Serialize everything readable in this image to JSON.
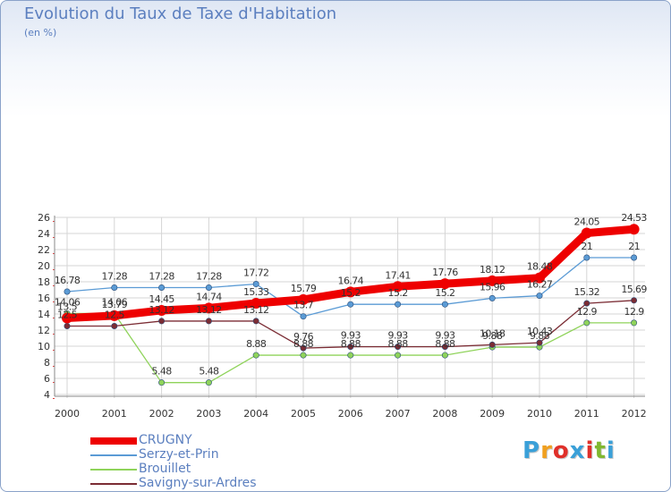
{
  "title": "Evolution du Taux de Taxe d'Habitation",
  "subtitle": "(en %)",
  "logo": {
    "text": "Proxiti",
    "letter_colors": [
      "#3aa0d8",
      "#f0a020",
      "#e0302a",
      "#3aa0d8",
      "#e0302a",
      "#80b830",
      "#3aa0d8"
    ]
  },
  "chart_data": {
    "type": "line",
    "x": [
      "2000",
      "2001",
      "2002",
      "2003",
      "2004",
      "2005",
      "2006",
      "2007",
      "2008",
      "2009",
      "2010",
      "2011",
      "2012"
    ],
    "ylim": [
      4,
      26
    ],
    "yticks": [
      4,
      6,
      8,
      10,
      12,
      14,
      16,
      18,
      20,
      22,
      24,
      26
    ],
    "grid": true,
    "legend_position": "bottom-left",
    "series": [
      {
        "name": "CRUGNY",
        "color": "#ee0000",
        "values": [
          13.5,
          13.79,
          14.45,
          14.74,
          15.33,
          15.79,
          16.74,
          17.41,
          17.76,
          18.12,
          18.48,
          24.05,
          24.53
        ],
        "labels": [
          "13.5",
          "13.79",
          "14.45",
          "14.74",
          "15.33",
          "15.79",
          "16.74",
          "17.41",
          "17.76",
          "18.12",
          "18.48",
          "24.05",
          "24.53"
        ]
      },
      {
        "name": "Serzy-et-Prin",
        "color": "#5b9bd5",
        "values": [
          16.78,
          17.28,
          17.28,
          17.28,
          17.72,
          13.7,
          15.2,
          15.2,
          15.2,
          15.96,
          16.27,
          21,
          21
        ],
        "labels": [
          "16.78",
          "17.28",
          "17.28",
          "17.28",
          "17.72",
          "13.7",
          "15.2",
          "15.2",
          "15.2",
          "15.96",
          "16.27",
          "21",
          "21"
        ]
      },
      {
        "name": "Brouillet",
        "color": "#8fd35a",
        "values": [
          14.06,
          14.06,
          5.48,
          5.48,
          8.88,
          8.88,
          8.88,
          8.88,
          8.88,
          9.88,
          9.88,
          12.9,
          12.9
        ],
        "labels": [
          "14.06",
          "14.06",
          "5.48",
          "5.48",
          "8.88",
          "8.88",
          "8.88",
          "8.88",
          "8.88",
          "9.88",
          "9.88",
          "12.9",
          "12.9"
        ]
      },
      {
        "name": "Savigny-sur-Ardres",
        "color": "#7b2c34",
        "values": [
          12.5,
          12.5,
          13.12,
          13.12,
          13.12,
          9.76,
          9.93,
          9.93,
          9.93,
          10.18,
          10.43,
          15.32,
          15.69
        ],
        "labels": [
          "12.5",
          "12.5",
          "13.12",
          "13.12",
          "13.12",
          "9.76",
          "9.93",
          "9.93",
          "9.93",
          "10.18",
          "10.43",
          "15.32",
          "15.69"
        ]
      }
    ]
  }
}
